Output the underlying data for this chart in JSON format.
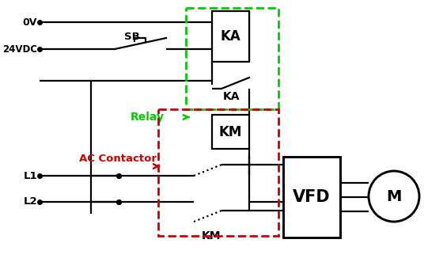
{
  "bg_color": "#ffffff",
  "line_color": "#000000",
  "green_color": "#00cc00",
  "red_color": "#cc0000",
  "ov_label": "0V",
  "vdc_label": "24VDC",
  "sb_label": "SB",
  "ka_label": "KA",
  "ka_sw_label": "KA",
  "km_label": "KM",
  "km2_label": "KM",
  "vfd_label": "VFD",
  "m_label": "M",
  "l1_label": "L1",
  "l2_label": "L2",
  "relay_text": "Relay",
  "ac_text": "AC Contactor"
}
